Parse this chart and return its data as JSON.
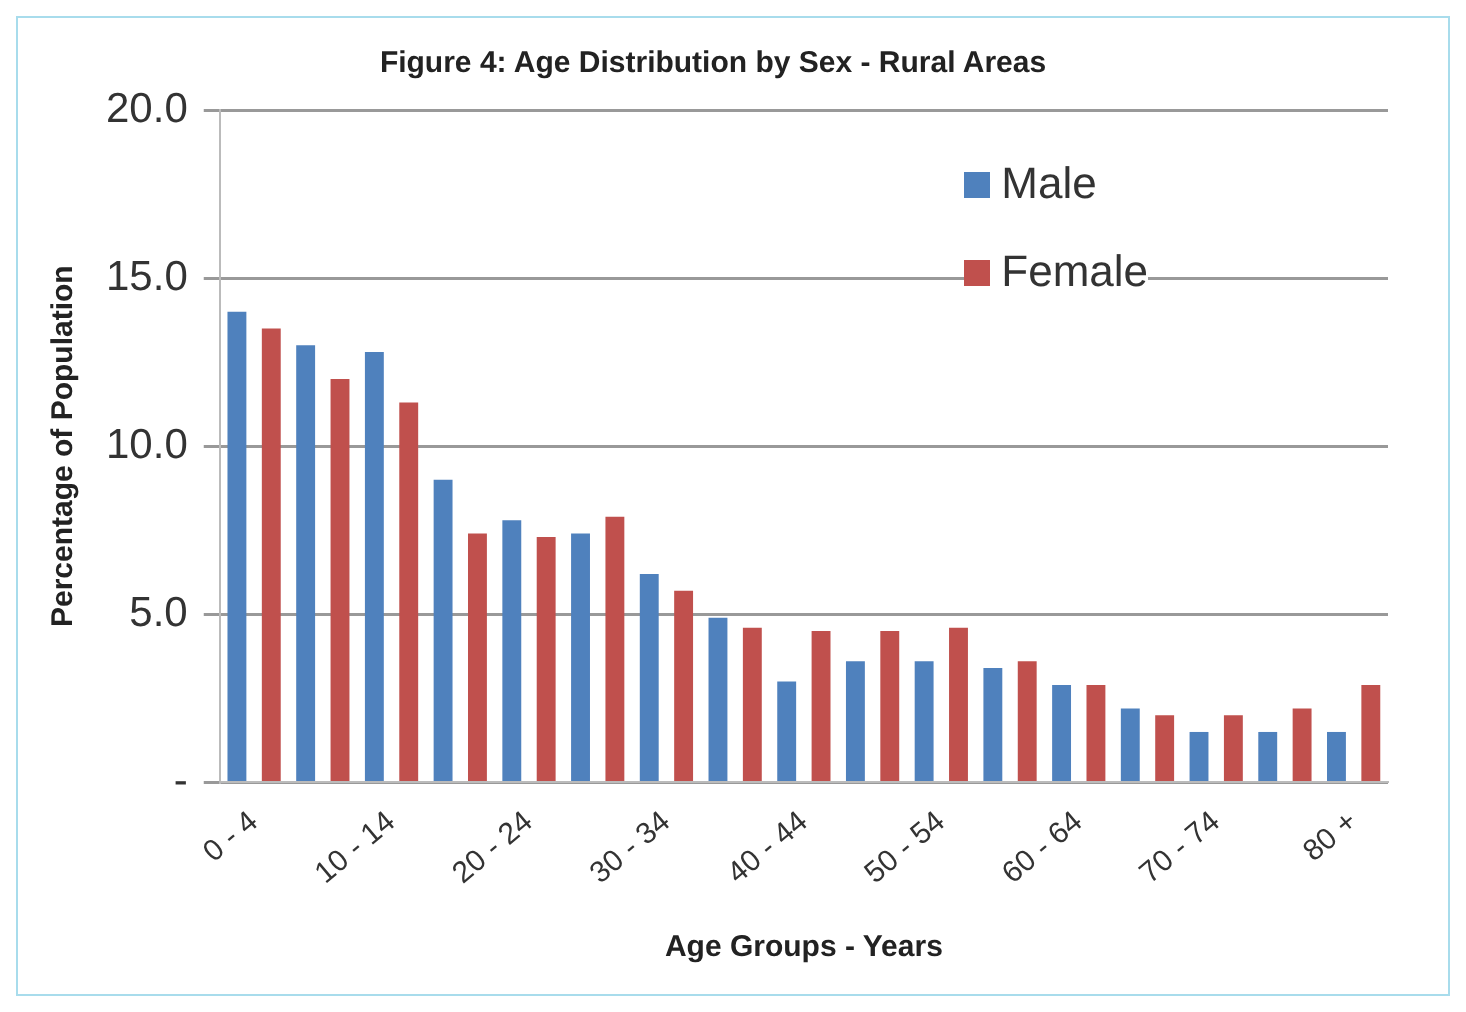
{
  "chart_data": {
    "type": "bar",
    "title": "Figure 4: Age Distribution by Sex - Rural Areas",
    "xlabel": "Age Groups - Years",
    "ylabel": "Percentage of Population",
    "categories": [
      "0 - 4",
      null,
      "10 - 14",
      null,
      "20 - 24",
      null,
      "30 - 34",
      null,
      "40 - 44",
      null,
      "50 - 54",
      null,
      "60 - 64",
      null,
      "70 - 74",
      null,
      "80 +"
    ],
    "series": [
      {
        "name": "Male",
        "color": "#4f81bd",
        "values": [
          14.0,
          13.0,
          12.8,
          9.0,
          7.8,
          7.4,
          6.2,
          4.9,
          3.0,
          3.6,
          3.6,
          3.4,
          2.9,
          2.2,
          1.5,
          1.5,
          1.5
        ]
      },
      {
        "name": "Female",
        "color": "#c0504d",
        "values": [
          13.5,
          12.0,
          11.3,
          7.4,
          7.3,
          7.9,
          5.7,
          4.6,
          4.5,
          4.5,
          4.6,
          3.6,
          2.9,
          2.0,
          2.0,
          2.2,
          2.9
        ]
      }
    ],
    "ylim": [
      0,
      20
    ],
    "yticks": [
      {
        "value": 0,
        "label": "-"
      },
      {
        "value": 5,
        "label": "5.0"
      },
      {
        "value": 10,
        "label": "10.0"
      },
      {
        "value": 15,
        "label": "15.0"
      },
      {
        "value": 20,
        "label": "20.0"
      }
    ],
    "grid": "y",
    "legend": "top right"
  }
}
